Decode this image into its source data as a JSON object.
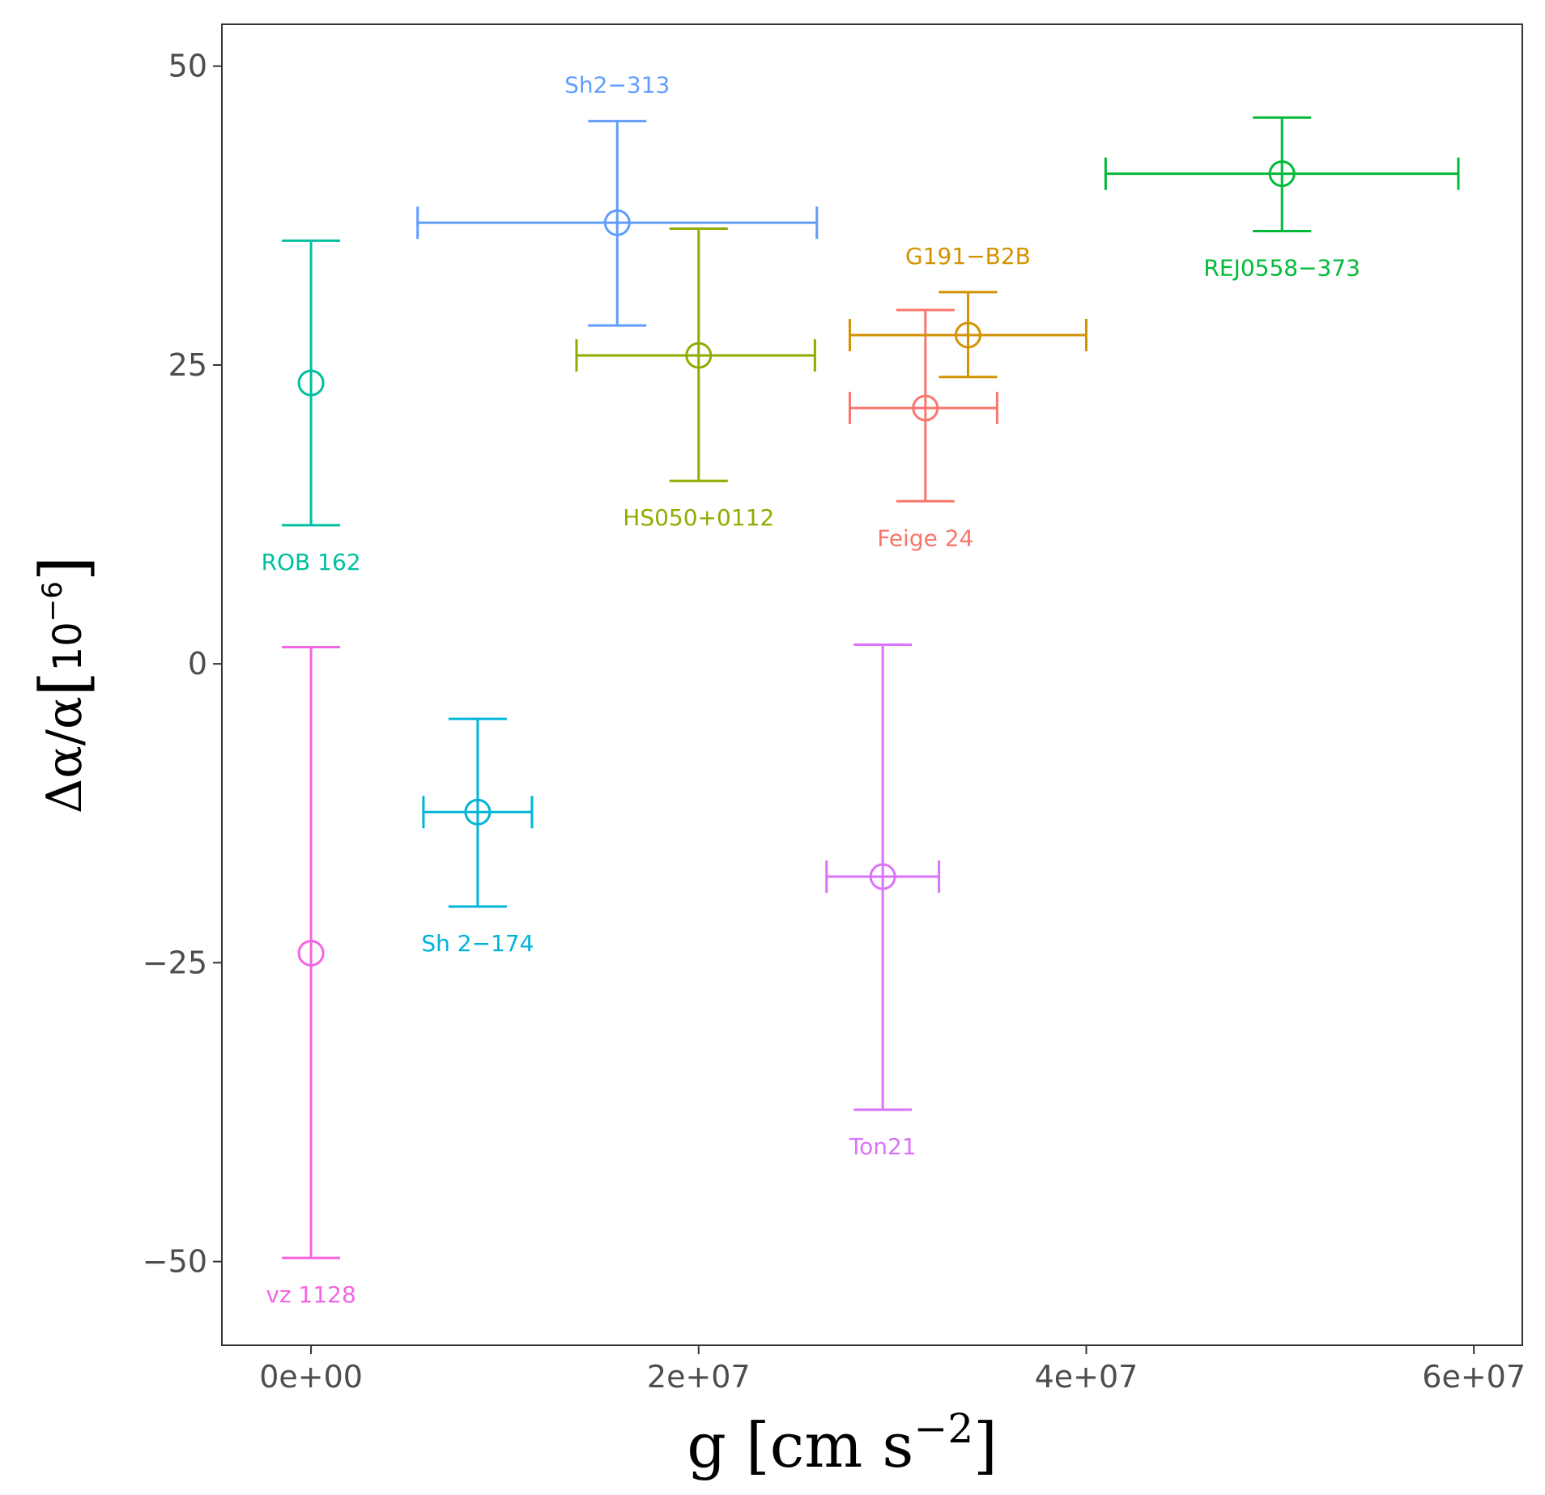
{
  "chart_data": {
    "type": "scatter",
    "title": "",
    "xlabel": {
      "base": "g [cm s",
      "sup": "−2",
      "close": "]"
    },
    "ylabel": {
      "base": "Δα/α",
      "open": "[",
      "unit": "10",
      "sup": "−6",
      "close": "]"
    },
    "xlim": [
      -4600000,
      62500000
    ],
    "ylim": [
      -57,
      53.5
    ],
    "x_ticks": [
      {
        "value": 0,
        "label": "0e+00"
      },
      {
        "value": 20000000,
        "label": "2e+07"
      },
      {
        "value": 40000000,
        "label": "4e+07"
      },
      {
        "value": 60000000,
        "label": "6e+07"
      }
    ],
    "y_ticks": [
      {
        "value": -50,
        "label": "−50"
      },
      {
        "value": -25,
        "label": "−25"
      },
      {
        "value": 0,
        "label": "0"
      },
      {
        "value": 25,
        "label": "25"
      },
      {
        "value": 50,
        "label": "50"
      }
    ],
    "grid": false,
    "series": [
      {
        "name": "vz 1128",
        "color": "#f564e3",
        "x": 0,
        "y": -24.2,
        "xmin": 0,
        "xmax": 0,
        "ymin": -49.7,
        "ymax": 1.4,
        "label_pos": "below"
      },
      {
        "name": "ROB 162",
        "color": "#00bfa0",
        "x": 0,
        "y": 23.5,
        "xmin": 0,
        "xmax": 0,
        "ymin": 11.6,
        "ymax": 35.4,
        "label_pos": "below"
      },
      {
        "name": "Sh 2−174",
        "color": "#00b4d8",
        "x": 8600000,
        "y": -12.4,
        "xmin": 5800000,
        "xmax": 11400000,
        "ymin": -20.3,
        "ymax": -4.6,
        "label_pos": "below"
      },
      {
        "name": "Sh2−313",
        "color": "#619cff",
        "x": 15800000,
        "y": 36.9,
        "xmin": 5500000,
        "xmax": 26100000,
        "ymin": 28.3,
        "ymax": 45.4,
        "label_pos": "above"
      },
      {
        "name": "HS050+0112",
        "color": "#93aa00",
        "x": 20000000,
        "y": 25.8,
        "xmin": 13700000,
        "xmax": 26000000,
        "ymin": 15.3,
        "ymax": 36.4,
        "label_pos": "below"
      },
      {
        "name": "Ton21",
        "color": "#db72fb",
        "x": 29500000,
        "y": -17.8,
        "xmin": 26600000,
        "xmax": 32400000,
        "ymin": -37.3,
        "ymax": 1.6,
        "label_pos": "below"
      },
      {
        "name": "Feige 24",
        "color": "#f8766d",
        "x": 31700000,
        "y": 21.4,
        "xmin": 27800000,
        "xmax": 35400000,
        "ymin": 13.6,
        "ymax": 29.6,
        "label_pos": "below"
      },
      {
        "name": "G191−B2B",
        "color": "#d39200",
        "x": 33900000,
        "y": 27.5,
        "xmin": 27800000,
        "xmax": 40000000,
        "ymin": 24.0,
        "ymax": 31.1,
        "label_pos": "above"
      },
      {
        "name": "REJ0558−373",
        "color": "#00ba38",
        "x": 50100000,
        "y": 41.0,
        "xmin": 41000000,
        "xmax": 59200000,
        "ymin": 36.2,
        "ymax": 45.7,
        "label_pos": "below"
      }
    ]
  }
}
